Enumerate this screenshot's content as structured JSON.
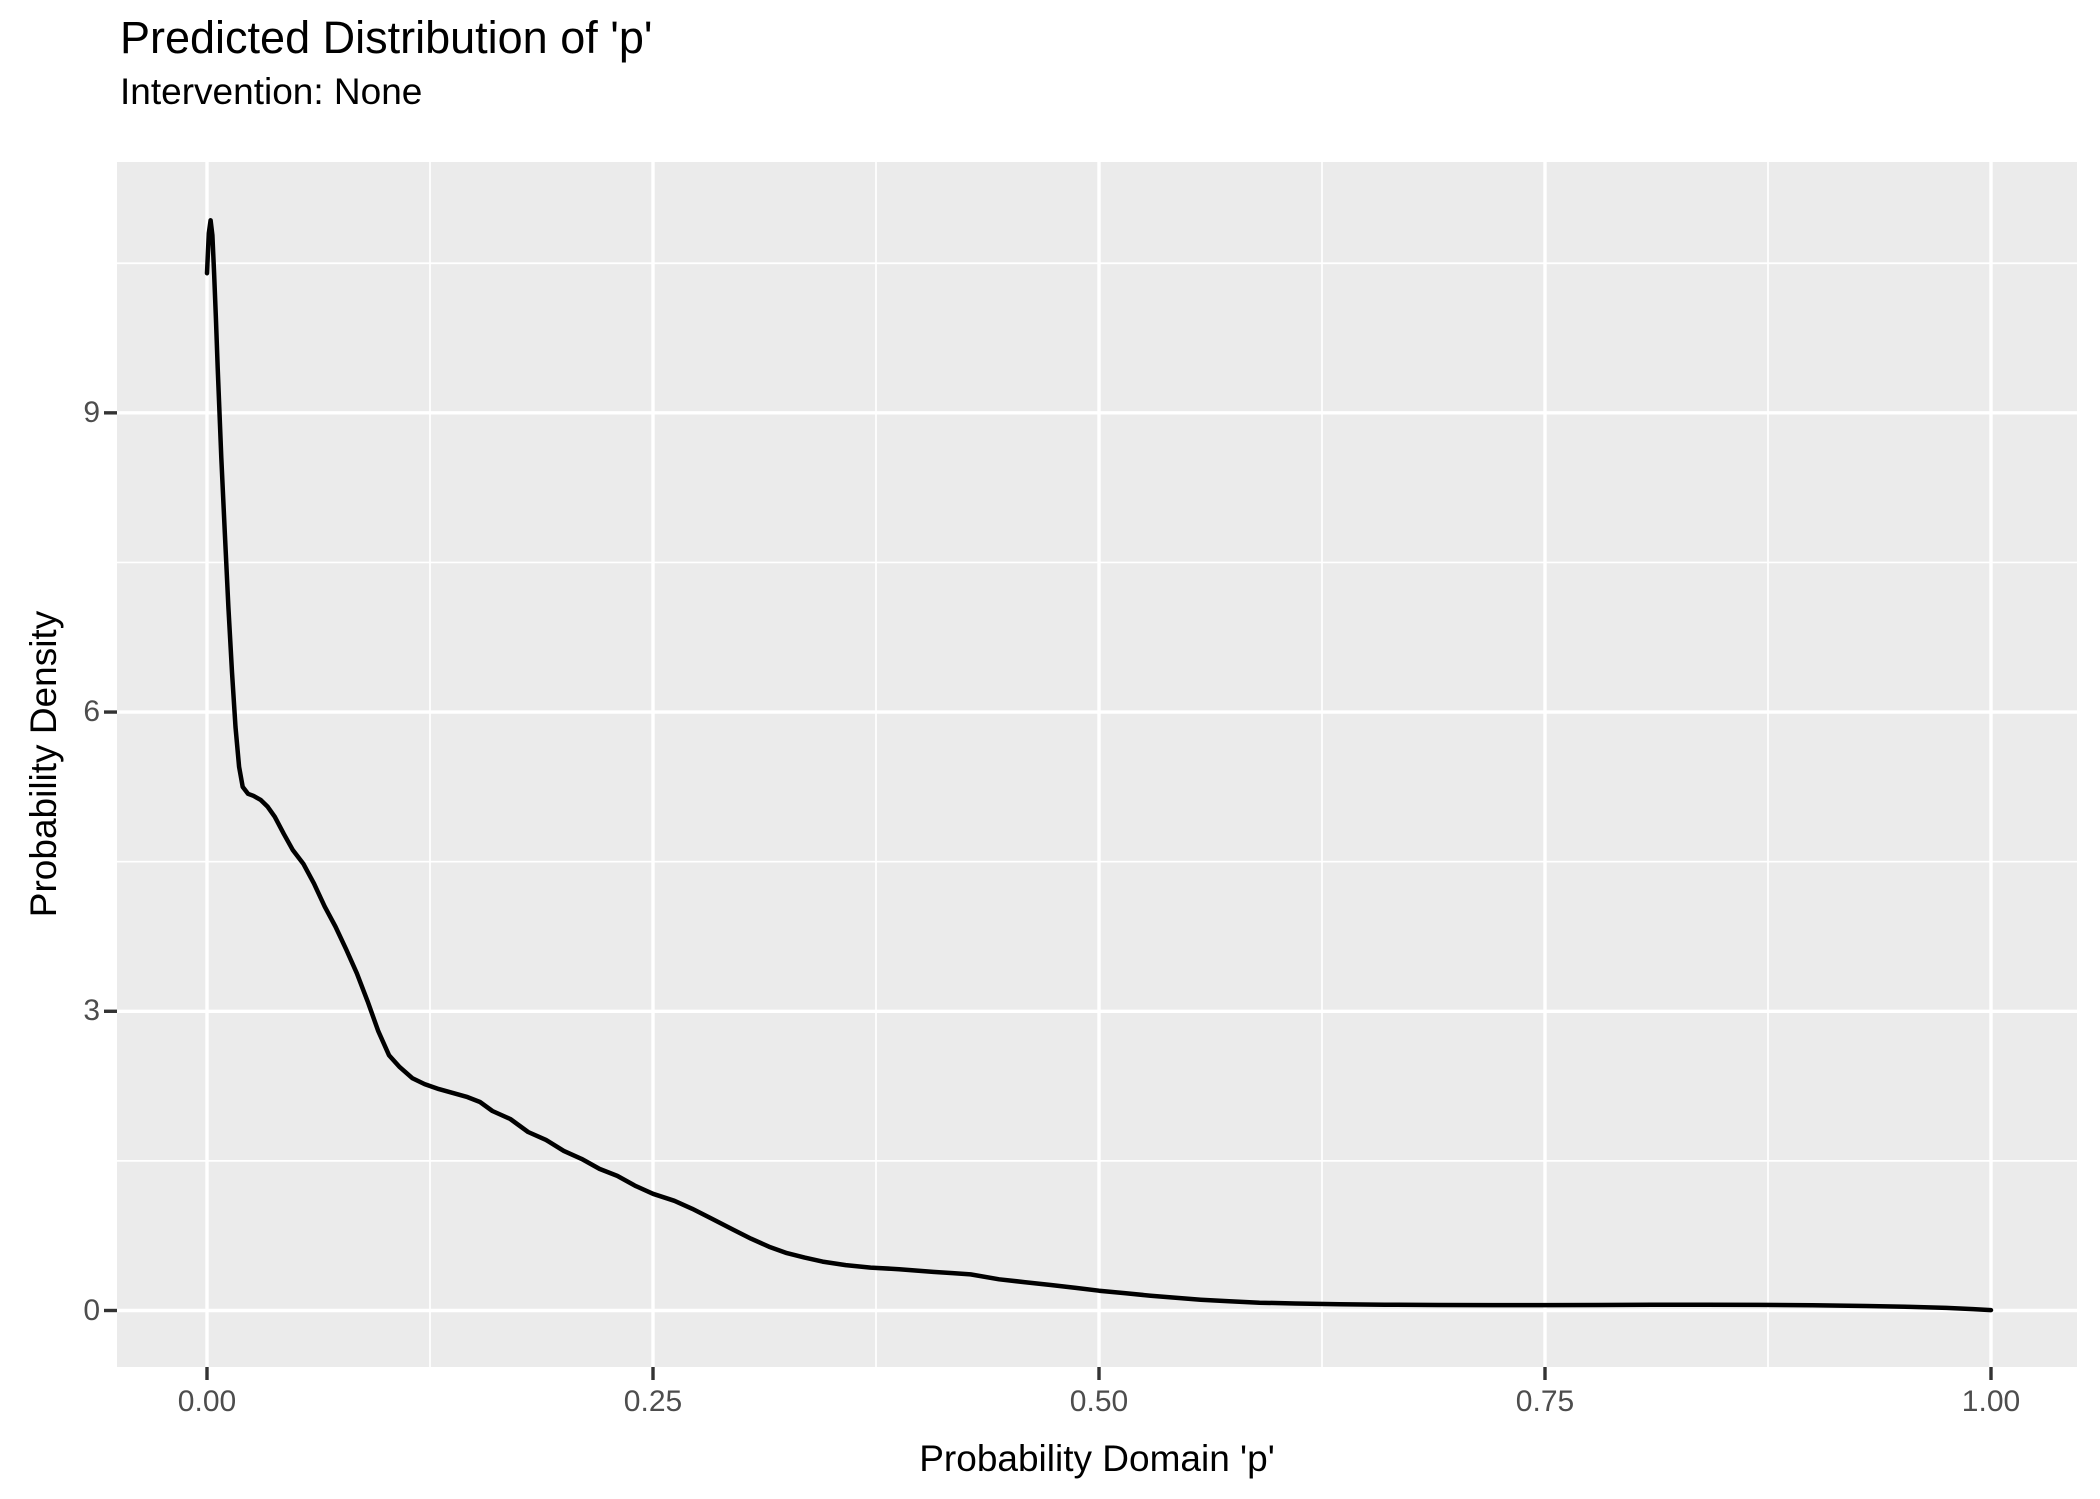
{
  "title": "Predicted Distribution of 'p'",
  "subtitle": "Intervention: None",
  "axes": {
    "x": {
      "title": "Probability Domain 'p'",
      "tick_labels": [
        "0.00",
        "0.25",
        "0.50",
        "0.75",
        "1.00"
      ],
      "tick_values": [
        0,
        0.25,
        0.5,
        0.75,
        1.0
      ],
      "range_shown": [
        -0.0504,
        1.0504
      ]
    },
    "y": {
      "title": "Probability Density",
      "tick_labels": [
        "0",
        "3",
        "6",
        "9"
      ],
      "tick_values": [
        0,
        3,
        6,
        9
      ],
      "range_shown": [
        -0.57,
        11.52
      ]
    }
  },
  "colors": {
    "page_background": "#FFFFFF",
    "panel_background": "#EBEBEB",
    "gridline": "#FFFFFF",
    "curve": "#000000",
    "axis_text": "#4D4D4D",
    "tick_mark": "#333333",
    "title_text": "#000000"
  },
  "chart_data": {
    "type": "line",
    "title": "Predicted Distribution of 'p'",
    "subtitle": "Intervention: None",
    "xlabel": "Probability Domain 'p'",
    "ylabel": "Probability Density",
    "xlim": [
      -0.0504,
      1.0504
    ],
    "ylim": [
      -0.57,
      11.52
    ],
    "x_ticks": [
      0,
      0.25,
      0.5,
      0.75,
      1.0
    ],
    "y_ticks": [
      0,
      3,
      6,
      9
    ],
    "grid": "white major and minor gridlines on grey panel",
    "legend": "none",
    "series": [
      {
        "name": "density",
        "color": "#000000",
        "points": [
          [
            0.0,
            10.4
          ],
          [
            0.001,
            10.8
          ],
          [
            0.002,
            10.93
          ],
          [
            0.003,
            10.78
          ],
          [
            0.004,
            10.4
          ],
          [
            0.005,
            9.95
          ],
          [
            0.006,
            9.45
          ],
          [
            0.008,
            8.55
          ],
          [
            0.01,
            7.8
          ],
          [
            0.012,
            7.05
          ],
          [
            0.014,
            6.4
          ],
          [
            0.016,
            5.85
          ],
          [
            0.018,
            5.45
          ],
          [
            0.02,
            5.25
          ],
          [
            0.023,
            5.18
          ],
          [
            0.026,
            5.16
          ],
          [
            0.03,
            5.12
          ],
          [
            0.034,
            5.05
          ],
          [
            0.038,
            4.95
          ],
          [
            0.043,
            4.78
          ],
          [
            0.048,
            4.62
          ],
          [
            0.054,
            4.48
          ],
          [
            0.06,
            4.28
          ],
          [
            0.066,
            4.05
          ],
          [
            0.072,
            3.85
          ],
          [
            0.078,
            3.62
          ],
          [
            0.084,
            3.38
          ],
          [
            0.09,
            3.1
          ],
          [
            0.096,
            2.8
          ],
          [
            0.102,
            2.56
          ],
          [
            0.108,
            2.44
          ],
          [
            0.115,
            2.33
          ],
          [
            0.122,
            2.27
          ],
          [
            0.13,
            2.22
          ],
          [
            0.138,
            2.18
          ],
          [
            0.146,
            2.14
          ],
          [
            0.153,
            2.09
          ],
          [
            0.16,
            2.0
          ],
          [
            0.17,
            1.92
          ],
          [
            0.18,
            1.79
          ],
          [
            0.19,
            1.71
          ],
          [
            0.2,
            1.6
          ],
          [
            0.21,
            1.52
          ],
          [
            0.22,
            1.42
          ],
          [
            0.23,
            1.35
          ],
          [
            0.24,
            1.25
          ],
          [
            0.25,
            1.17
          ],
          [
            0.262,
            1.1
          ],
          [
            0.272,
            1.02
          ],
          [
            0.283,
            0.92
          ],
          [
            0.295,
            0.81
          ],
          [
            0.305,
            0.72
          ],
          [
            0.315,
            0.64
          ],
          [
            0.325,
            0.575
          ],
          [
            0.335,
            0.53
          ],
          [
            0.345,
            0.49
          ],
          [
            0.358,
            0.455
          ],
          [
            0.372,
            0.43
          ],
          [
            0.388,
            0.414
          ],
          [
            0.407,
            0.387
          ],
          [
            0.418,
            0.375
          ],
          [
            0.428,
            0.362
          ],
          [
            0.444,
            0.313
          ],
          [
            0.458,
            0.285
          ],
          [
            0.473,
            0.256
          ],
          [
            0.487,
            0.227
          ],
          [
            0.5,
            0.199
          ],
          [
            0.515,
            0.172
          ],
          [
            0.529,
            0.148
          ],
          [
            0.543,
            0.127
          ],
          [
            0.557,
            0.108
          ],
          [
            0.573,
            0.092
          ],
          [
            0.59,
            0.078
          ],
          [
            0.61,
            0.07
          ],
          [
            0.635,
            0.063
          ],
          [
            0.66,
            0.058
          ],
          [
            0.69,
            0.055
          ],
          [
            0.72,
            0.054
          ],
          [
            0.75,
            0.054
          ],
          [
            0.78,
            0.055
          ],
          [
            0.81,
            0.057
          ],
          [
            0.84,
            0.058
          ],
          [
            0.87,
            0.056
          ],
          [
            0.9,
            0.052
          ],
          [
            0.93,
            0.045
          ],
          [
            0.955,
            0.036
          ],
          [
            0.975,
            0.026
          ],
          [
            0.99,
            0.014
          ],
          [
            1.0,
            0.004
          ]
        ]
      }
    ]
  }
}
